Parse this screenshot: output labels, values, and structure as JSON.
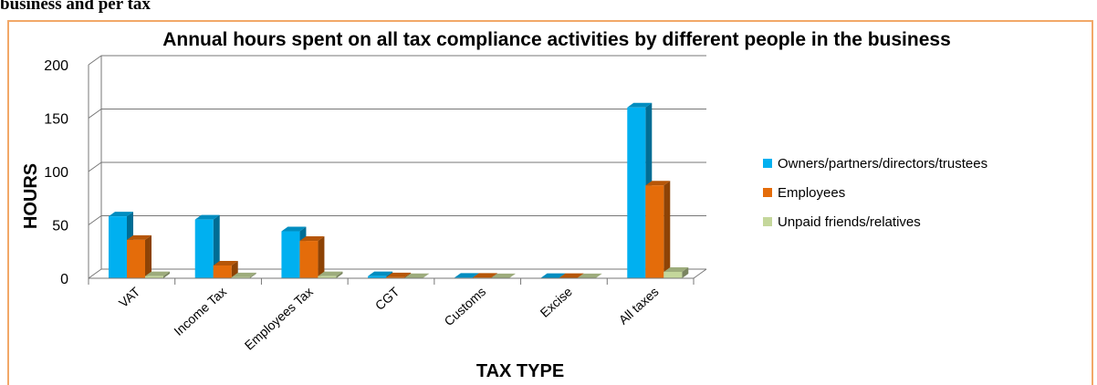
{
  "caption_top": "business and per tax",
  "chart_data": {
    "type": "bar",
    "title": "Annual hours spent on all tax compliance activities by different people in the business",
    "xlabel": "TAX TYPE",
    "ylabel": "HOURS",
    "ylim": [
      0,
      200
    ],
    "yticks": [
      0,
      50,
      100,
      150,
      200
    ],
    "grid": true,
    "legend_position": "right",
    "categories": [
      "VAT",
      "Income Tax",
      "Employees Tax",
      "CGT",
      "Customs",
      "Excise",
      "All taxes"
    ],
    "series": [
      {
        "name": "Owners/partners/directors/trustees",
        "color": "#00b0f0",
        "values": [
          58,
          55,
          44,
          2,
          0.5,
          0.3,
          160
        ]
      },
      {
        "name": "Employees",
        "color": "#e46c0a",
        "values": [
          36,
          12,
          35,
          1,
          0.5,
          0.3,
          87
        ]
      },
      {
        "name": "Unpaid friends/relatives",
        "color": "#c4d79b",
        "values": [
          2,
          1,
          2,
          0.2,
          0.1,
          0.1,
          6
        ]
      }
    ]
  }
}
